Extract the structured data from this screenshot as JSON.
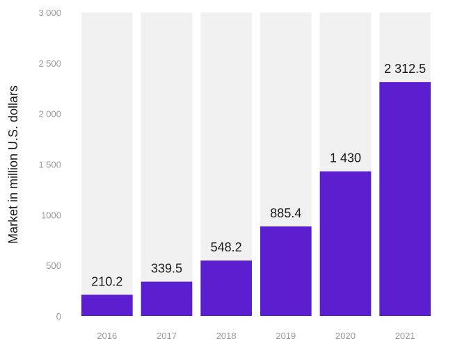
{
  "chart_data": {
    "type": "bar",
    "title": "",
    "xlabel": "",
    "ylabel": "Market in million U.S. dollars",
    "categories": [
      "2016",
      "2017",
      "2018",
      "2019",
      "2020",
      "2021"
    ],
    "values": [
      210.2,
      339.5,
      548.2,
      885.4,
      1430,
      2312.5
    ],
    "value_labels": [
      "210.2",
      "339.5",
      "548.2",
      "885.4",
      "1 430",
      "2 312.5"
    ],
    "ylim": [
      0,
      3000
    ],
    "yticks": [
      0,
      500,
      1000,
      1500,
      2000,
      2500,
      3000
    ],
    "ytick_labels": [
      "0",
      "500",
      "1000",
      "1 500",
      "2 000",
      "2 500",
      "3 000"
    ],
    "grid": false,
    "legend": "none",
    "colors": {
      "bar": "#5b1fd0",
      "column_background": "#f1f1f1",
      "tick_label": "#9a9a9a",
      "value_label": "#1a1a1a",
      "axis_label": "#1a1a1a"
    }
  }
}
